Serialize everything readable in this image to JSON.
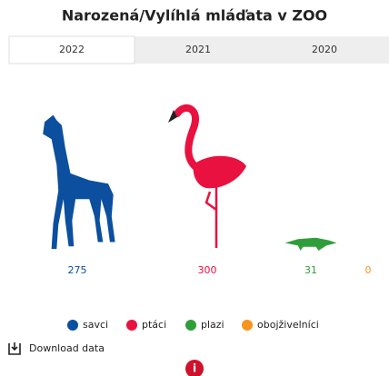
{
  "chart_data": {
    "type": "pictograph",
    "title": "Narozená/Vylíhlá mláďata v ZOO",
    "categories": [
      "savci",
      "ptáci",
      "plazi",
      "obojživelníci"
    ],
    "values": [
      275,
      300,
      31,
      0
    ],
    "colors": [
      "#0b4f9e",
      "#e8113f",
      "#2f9e3a",
      "#f7941d"
    ]
  },
  "tabs": [
    "2022",
    "2021",
    "2020"
  ],
  "download": "Download data"
}
